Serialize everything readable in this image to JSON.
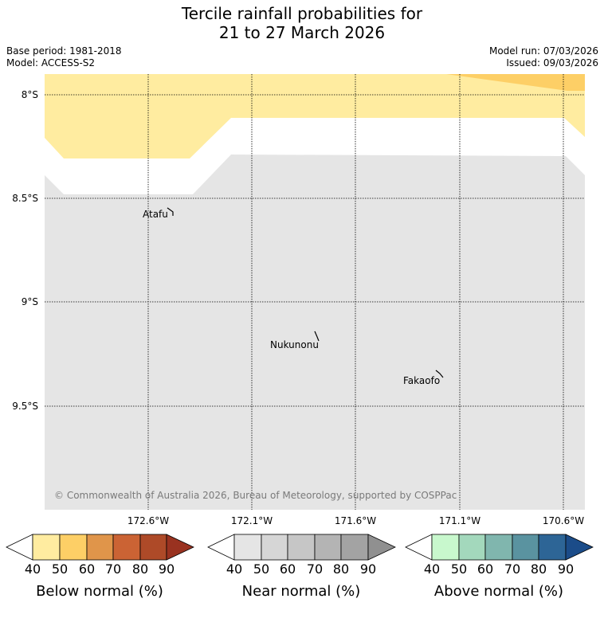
{
  "title": {
    "line1": "Tercile rainfall probabilities for",
    "line2": "21 to 27 March 2026"
  },
  "meta": {
    "base_period": "Base period: 1981-2018",
    "model": "Model: ACCESS-S2",
    "model_run": "Model run: 07/03/2026",
    "issued": "Issued: 09/03/2026"
  },
  "map": {
    "lat_labels": [
      "8°S",
      "8.5°S",
      "9°S",
      "9.5°S"
    ],
    "lon_labels": [
      "172.6°W",
      "172.1°W",
      "171.6°W",
      "171.1°W",
      "170.6°W"
    ],
    "places": [
      "Atafu",
      "Nukunonu",
      "Fakaofo"
    ],
    "colors": {
      "near_normal": "#e5e5e5",
      "below_50": "#ffeca0",
      "below_60": "#fdcf66"
    },
    "copyright": "© Commonwealth of Australia 2026, Bureau of Meteorology, supported by COSPPac"
  },
  "legends": [
    {
      "title": "Below normal (%)",
      "ticks": [
        "40",
        "50",
        "60",
        "70",
        "80",
        "90"
      ],
      "colors": [
        "#ffffff",
        "#ffeca0",
        "#fdcf66",
        "#e0954a",
        "#cb6334",
        "#ae4a28",
        "#993220"
      ]
    },
    {
      "title": "Near normal (%)",
      "ticks": [
        "40",
        "50",
        "60",
        "70",
        "80",
        "90"
      ],
      "colors": [
        "#ffffff",
        "#e5e5e5",
        "#d6d6d6",
        "#c6c6c6",
        "#b4b4b4",
        "#a3a3a3",
        "#909090"
      ]
    },
    {
      "title": "Above normal (%)",
      "ticks": [
        "40",
        "50",
        "60",
        "70",
        "80",
        "90"
      ],
      "colors": [
        "#ffffff",
        "#c8f8cd",
        "#a3d8bc",
        "#80b6ae",
        "#5a93a0",
        "#2d6596",
        "#1b4c89"
      ]
    }
  ]
}
